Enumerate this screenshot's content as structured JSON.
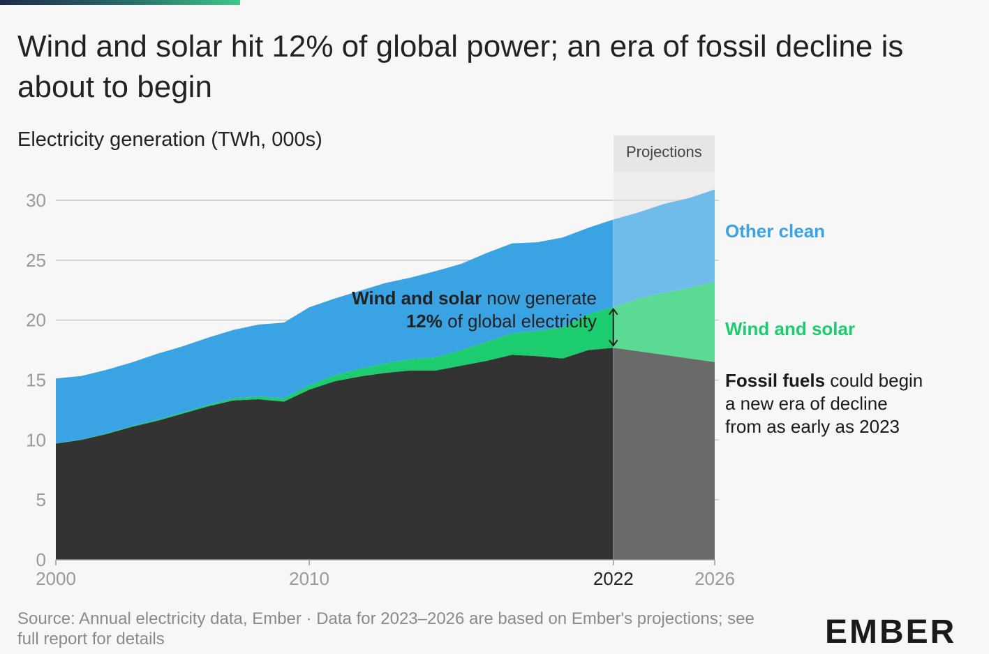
{
  "title": "Wind and solar hit 12% of global power; an era of fossil decline is about to begin",
  "subtitle": "Electricity generation (TWh, 000s)",
  "source": "Source: Annual electricity data, Ember · Data for 2023–2026 are based on Ember's projections; see full report for details",
  "logo": {
    "text": "EMBER",
    "name": "ember-logo"
  },
  "projections_label": "Projections",
  "annotation": {
    "line1_bold": "Wind and solar",
    "line1_rest": " now generate",
    "line2_bold": "12%",
    "line2_rest": " of global electricity"
  },
  "labels": {
    "other_clean": "Other clean",
    "wind_solar": "Wind and solar",
    "fossil_bold": "Fossil fuels",
    "fossil_l1": " could begin",
    "fossil_l2": "a new era of decline",
    "fossil_l3": "from as early as 2023"
  },
  "colors": {
    "fossil": "#333333",
    "wind_solar": "#1dcc6e",
    "other_clean": "#3aa3e3",
    "background": "#f7f7f7",
    "label_other_clean": "#3aa3e3",
    "label_wind_solar": "#1dcc6e"
  },
  "chart_data": {
    "type": "area",
    "stacked": true,
    "xlim": [
      2000,
      2026
    ],
    "ylim": [
      0,
      30
    ],
    "yticks": [
      0,
      5,
      10,
      15,
      20,
      25,
      30
    ],
    "xticks": [
      {
        "value": 2000,
        "label": "2000"
      },
      {
        "value": 2010,
        "label": "2010"
      },
      {
        "value": 2022,
        "label": "2022"
      },
      {
        "value": 2026,
        "label": "2026"
      }
    ],
    "projection_start": 2022,
    "ylabel": "Electricity generation (TWh, 000s)",
    "x": [
      2000,
      2001,
      2002,
      2003,
      2004,
      2005,
      2006,
      2007,
      2008,
      2009,
      2010,
      2011,
      2012,
      2013,
      2014,
      2015,
      2016,
      2017,
      2018,
      2019,
      2020,
      2021,
      2022,
      2023,
      2024,
      2025,
      2026
    ],
    "series": [
      {
        "name": "Fossil fuels",
        "values": [
          9.7,
          10.0,
          10.5,
          11.1,
          11.6,
          12.2,
          12.8,
          13.3,
          13.4,
          13.2,
          14.2,
          14.9,
          15.3,
          15.6,
          15.8,
          15.8,
          16.2,
          16.6,
          17.1,
          17.0,
          16.8,
          17.5,
          17.7,
          17.4,
          17.1,
          16.8,
          16.5
        ]
      },
      {
        "name": "Wind and solar",
        "values": [
          0.03,
          0.04,
          0.05,
          0.07,
          0.09,
          0.11,
          0.13,
          0.18,
          0.23,
          0.29,
          0.37,
          0.5,
          0.65,
          0.8,
          0.95,
          1.1,
          1.3,
          1.6,
          1.8,
          2.1,
          2.6,
          3.0,
          3.4,
          4.4,
          5.2,
          5.9,
          6.7
        ]
      },
      {
        "name": "Other clean",
        "values": [
          5.4,
          5.3,
          5.3,
          5.3,
          5.5,
          5.5,
          5.6,
          5.7,
          6.0,
          6.3,
          6.5,
          6.4,
          6.5,
          6.7,
          6.8,
          7.2,
          7.2,
          7.4,
          7.5,
          7.4,
          7.5,
          7.2,
          7.3,
          7.2,
          7.4,
          7.5,
          7.7
        ]
      }
    ]
  }
}
